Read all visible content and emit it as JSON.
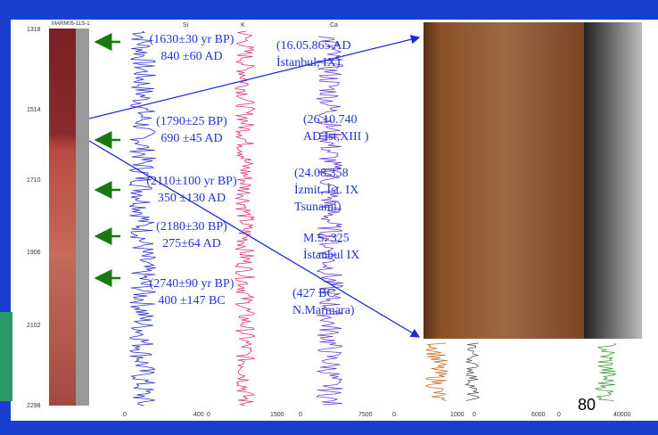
{
  "core_label": "MARM05-11S-1",
  "depth_ticks": [
    "1318",
    "1514",
    "1710",
    "1906",
    "2102",
    "2298"
  ],
  "tracks": [
    {
      "name": "Si",
      "min": "0",
      "max": "400"
    },
    {
      "name": "K",
      "min": "0",
      "max": "1500"
    },
    {
      "name": "Ca",
      "min": "0",
      "max": "7500"
    },
    {
      "min": "0",
      "max": "1000"
    },
    {
      "min": "0",
      "max": "6000"
    },
    {
      "min": "0",
      "max": "40000"
    }
  ],
  "dating": [
    [
      "(1630±30 yr BP)",
      "840 ±60 AD"
    ],
    [
      "(1790±25 BP)",
      "690 ±45 AD"
    ],
    [
      "(2110±100 yr BP)",
      "350 ±130 AD"
    ],
    [
      "(2180±30 BP)",
      "275±64 AD"
    ],
    [
      "(2740±90 yr BP)",
      "400 ±147 BC"
    ]
  ],
  "events": [
    [
      "(16.05.865 AD",
      "İstanbul, IX)"
    ],
    [
      "(26.10.740",
      "AD Ist,XIII )"
    ],
    [
      "(24.08.358",
      "İzmit, İst. IX",
      "Tsunami)"
    ],
    [
      "M.S. 325",
      "İstanbul IX"
    ],
    [
      "(427 BC",
      "N.Marmara)"
    ]
  ],
  "page_number": "80"
}
